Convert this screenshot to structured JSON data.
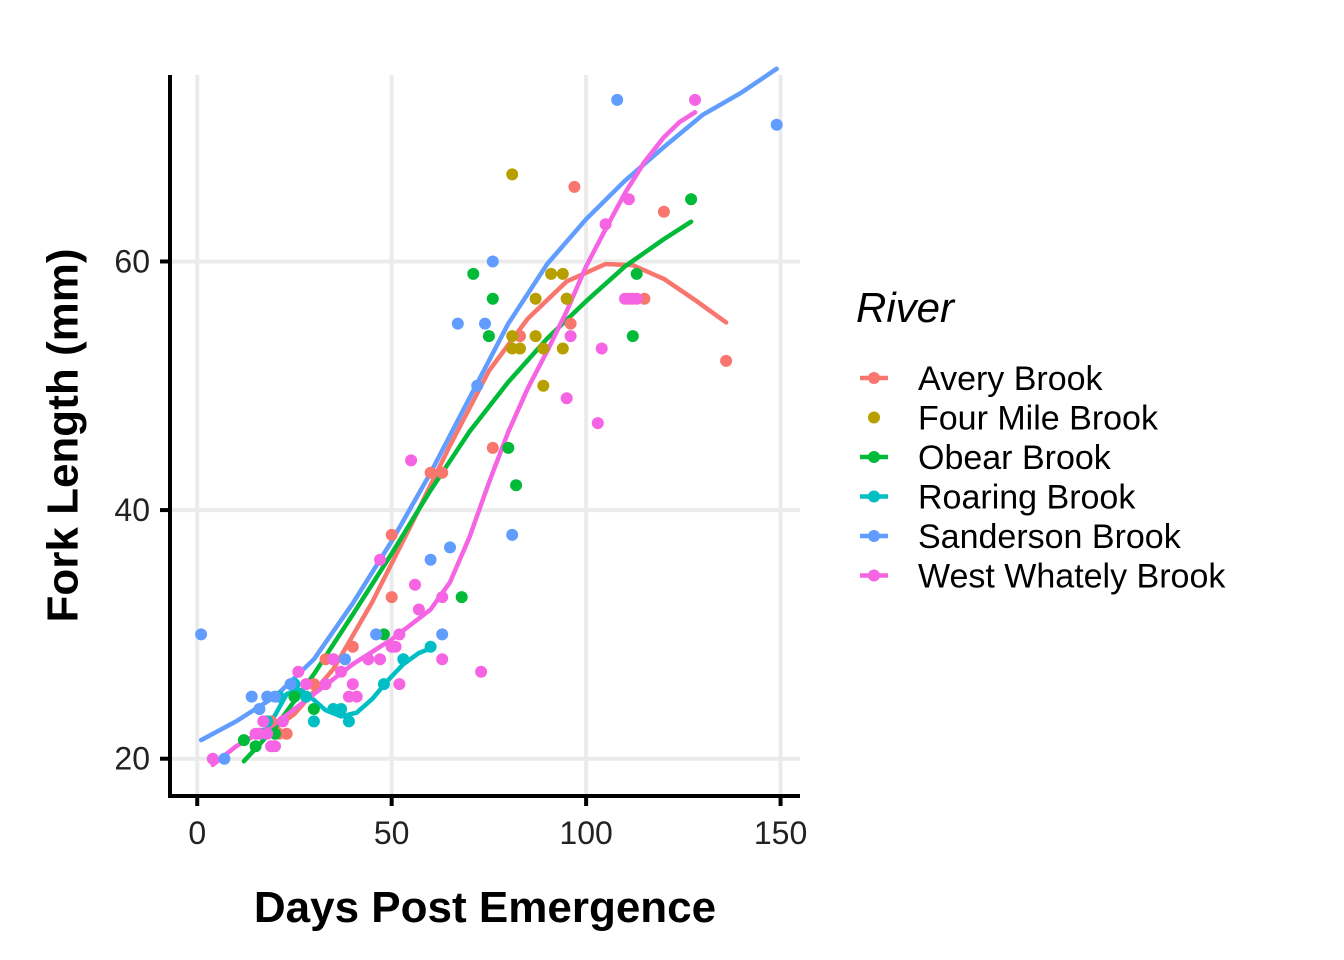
{
  "chart_data": {
    "type": "scatter",
    "xlabel": "Days Post Emergence",
    "ylabel": "Fork Length (mm)",
    "xlim": [
      -7,
      155
    ],
    "ylim": [
      17,
      75
    ],
    "xticks": [
      0,
      50,
      100,
      150
    ],
    "yticks": [
      20,
      40,
      60
    ],
    "grid": true,
    "legend": {
      "title": "River",
      "placement": "right"
    },
    "series": [
      {
        "name": "Avery Brook",
        "color": "#F8766D",
        "has_line": true,
        "points": [
          [
            19,
            23
          ],
          [
            21,
            22
          ],
          [
            23,
            22
          ],
          [
            30,
            26
          ],
          [
            33,
            28
          ],
          [
            35,
            28
          ],
          [
            40,
            29
          ],
          [
            50,
            38
          ],
          [
            50,
            33
          ],
          [
            60,
            43
          ],
          [
            63,
            43
          ],
          [
            76,
            45
          ],
          [
            83,
            54
          ],
          [
            95,
            57
          ],
          [
            96,
            55
          ],
          [
            97,
            66
          ],
          [
            111,
            57
          ],
          [
            115,
            57
          ],
          [
            120,
            64
          ],
          [
            136,
            52
          ]
        ],
        "smooth": [
          [
            19,
            22.2
          ],
          [
            25,
            23.6
          ],
          [
            35,
            27.2
          ],
          [
            45,
            32.6
          ],
          [
            55,
            38.8
          ],
          [
            65,
            45.2
          ],
          [
            75,
            51.2
          ],
          [
            85,
            55.4
          ],
          [
            95,
            58.4
          ],
          [
            105,
            59.8
          ],
          [
            112,
            59.7
          ],
          [
            120,
            58.6
          ],
          [
            128,
            56.9
          ],
          [
            136,
            55.1
          ]
        ]
      },
      {
        "name": "Four Mile Brook",
        "color": "#B79F00",
        "has_line": false,
        "points": [
          [
            81,
            67
          ],
          [
            81,
            54
          ],
          [
            81,
            53
          ],
          [
            83,
            53
          ],
          [
            87,
            54
          ],
          [
            87,
            57
          ],
          [
            89,
            53
          ],
          [
            89,
            50
          ],
          [
            91,
            59
          ],
          [
            94,
            59
          ],
          [
            94,
            53
          ],
          [
            95,
            57
          ]
        ],
        "smooth": []
      },
      {
        "name": "Obear Brook",
        "color": "#00BA38",
        "has_line": true,
        "points": [
          [
            12,
            21.5
          ],
          [
            15,
            21
          ],
          [
            20,
            22
          ],
          [
            25,
            25
          ],
          [
            30,
            24
          ],
          [
            48,
            30
          ],
          [
            68,
            33
          ],
          [
            71,
            59
          ],
          [
            75,
            54
          ],
          [
            76,
            57
          ],
          [
            80,
            45
          ],
          [
            82,
            42
          ],
          [
            112,
            54
          ],
          [
            113,
            59
          ],
          [
            127,
            65
          ]
        ],
        "smooth": [
          [
            12,
            19.8
          ],
          [
            20,
            22.5
          ],
          [
            30,
            26.8
          ],
          [
            40,
            31.6
          ],
          [
            50,
            36.5
          ],
          [
            60,
            41.6
          ],
          [
            70,
            46.3
          ],
          [
            80,
            50.3
          ],
          [
            90,
            53.8
          ],
          [
            100,
            56.8
          ],
          [
            110,
            59.6
          ],
          [
            120,
            61.8
          ],
          [
            127,
            63.2
          ]
        ]
      },
      {
        "name": "Roaring Brook",
        "color": "#00BFC4",
        "has_line": true,
        "points": [
          [
            17,
            22
          ],
          [
            18,
            23
          ],
          [
            21,
            25
          ],
          [
            25,
            26
          ],
          [
            28,
            25
          ],
          [
            30,
            23
          ],
          [
            35,
            24
          ],
          [
            37,
            24
          ],
          [
            39,
            23
          ],
          [
            48,
            26
          ],
          [
            53,
            28
          ],
          [
            60,
            29
          ]
        ],
        "smooth": [
          [
            17,
            22
          ],
          [
            20,
            23.5
          ],
          [
            23,
            25.2
          ],
          [
            26,
            25.6
          ],
          [
            29,
            25.0
          ],
          [
            33,
            23.9
          ],
          [
            37,
            23.4
          ],
          [
            41,
            23.7
          ],
          [
            45,
            24.8
          ],
          [
            49,
            26.3
          ],
          [
            53,
            27.6
          ],
          [
            57,
            28.5
          ],
          [
            61,
            29
          ]
        ]
      },
      {
        "name": "Sanderson Brook",
        "color": "#619CFF",
        "has_line": true,
        "points": [
          [
            1,
            30
          ],
          [
            7,
            20
          ],
          [
            14,
            25
          ],
          [
            16,
            24
          ],
          [
            18,
            25
          ],
          [
            20,
            25
          ],
          [
            24,
            26
          ],
          [
            38,
            28
          ],
          [
            46,
            30
          ],
          [
            60,
            36
          ],
          [
            63,
            30
          ],
          [
            65,
            37
          ],
          [
            67,
            55
          ],
          [
            72,
            50
          ],
          [
            74,
            55
          ],
          [
            76,
            60
          ],
          [
            81,
            38
          ],
          [
            108,
            73
          ],
          [
            149,
            71
          ]
        ],
        "smooth": [
          [
            1,
            21.5
          ],
          [
            10,
            23
          ],
          [
            20,
            25
          ],
          [
            30,
            28
          ],
          [
            40,
            32.5
          ],
          [
            50,
            37.5
          ],
          [
            60,
            43
          ],
          [
            70,
            49
          ],
          [
            80,
            55
          ],
          [
            90,
            59.8
          ],
          [
            100,
            63.4
          ],
          [
            110,
            66.5
          ],
          [
            120,
            69.2
          ],
          [
            130,
            71.8
          ],
          [
            140,
            73.6
          ],
          [
            149,
            75.5
          ]
        ]
      },
      {
        "name": "West Whately Brook",
        "color": "#F564E3",
        "has_line": true,
        "points": [
          [
            4,
            20
          ],
          [
            15,
            22
          ],
          [
            16,
            22
          ],
          [
            17,
            23
          ],
          [
            18,
            22
          ],
          [
            19,
            21
          ],
          [
            20,
            21
          ],
          [
            22,
            23
          ],
          [
            26,
            27
          ],
          [
            28,
            26
          ],
          [
            33,
            26
          ],
          [
            35,
            28
          ],
          [
            37,
            27
          ],
          [
            39,
            25
          ],
          [
            40,
            26
          ],
          [
            41,
            25
          ],
          [
            44,
            28
          ],
          [
            47,
            36
          ],
          [
            47,
            28
          ],
          [
            50,
            29
          ],
          [
            51,
            29
          ],
          [
            52,
            30
          ],
          [
            52,
            26
          ],
          [
            55,
            44
          ],
          [
            56,
            34
          ],
          [
            57,
            32
          ],
          [
            63,
            33
          ],
          [
            63,
            28
          ],
          [
            73,
            27
          ],
          [
            95,
            49
          ],
          [
            96,
            54
          ],
          [
            103,
            47
          ],
          [
            104,
            53
          ],
          [
            105,
            63
          ],
          [
            110,
            57
          ],
          [
            112,
            57
          ],
          [
            113,
            57
          ],
          [
            111,
            65
          ],
          [
            128,
            73
          ]
        ],
        "smooth": [
          [
            4,
            19.5
          ],
          [
            10,
            21
          ],
          [
            20,
            22.8
          ],
          [
            30,
            25.2
          ],
          [
            40,
            27.6
          ],
          [
            50,
            29.6
          ],
          [
            60,
            32
          ],
          [
            65,
            34.2
          ],
          [
            70,
            37.8
          ],
          [
            75,
            42.2
          ],
          [
            80,
            46.3
          ],
          [
            85,
            49.8
          ],
          [
            90,
            52.8
          ],
          [
            95,
            56
          ],
          [
            100,
            59.6
          ],
          [
            105,
            62.6
          ],
          [
            110,
            65.5
          ],
          [
            115,
            68
          ],
          [
            120,
            70
          ],
          [
            124,
            71.2
          ],
          [
            128,
            72
          ]
        ]
      }
    ]
  }
}
